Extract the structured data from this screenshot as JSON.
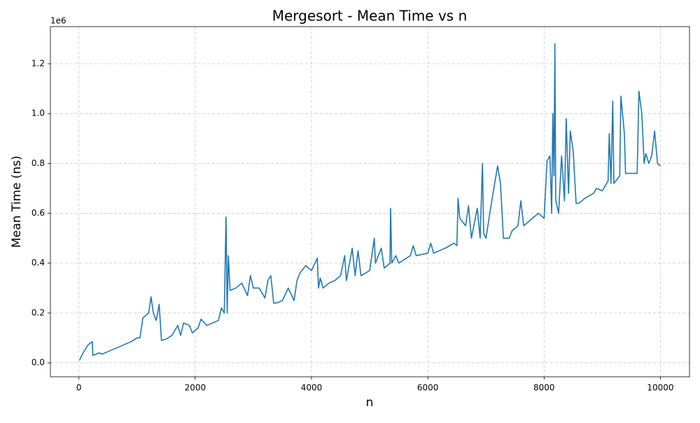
{
  "chart_data": {
    "type": "line",
    "title": "Mergesort - Mean Time vs n",
    "x_label": "n",
    "y_label": "Mean Time (ns)",
    "y_offset_label": "1e6",
    "x": [
      10,
      50,
      100,
      150,
      200,
      230,
      240,
      300,
      350,
      400,
      500,
      700,
      900,
      1000,
      1050,
      1100,
      1200,
      1240,
      1280,
      1330,
      1380,
      1420,
      1500,
      1600,
      1700,
      1750,
      1800,
      1900,
      1950,
      2050,
      2100,
      2200,
      2400,
      2450,
      2500,
      2530,
      2550,
      2570,
      2600,
      2700,
      2800,
      2900,
      2950,
      3000,
      3100,
      3200,
      3250,
      3300,
      3350,
      3400,
      3500,
      3600,
      3700,
      3750,
      3800,
      3900,
      4000,
      4100,
      4120,
      4150,
      4200,
      4300,
      4400,
      4500,
      4570,
      4600,
      4700,
      4750,
      4800,
      4850,
      5000,
      5080,
      5100,
      5200,
      5250,
      5350,
      5360,
      5380,
      5450,
      5500,
      5700,
      5750,
      5800,
      6000,
      6050,
      6100,
      6300,
      6450,
      6500,
      6520,
      6550,
      6650,
      6700,
      6750,
      6850,
      6900,
      6940,
      6960,
      7000,
      7100,
      7200,
      7250,
      7300,
      7400,
      7450,
      7550,
      7600,
      7650,
      7750,
      7900,
      8000,
      8050,
      8100,
      8130,
      8150,
      8170,
      8185,
      8200,
      8250,
      8300,
      8350,
      8380,
      8420,
      8450,
      8500,
      8550,
      8600,
      8700,
      8850,
      8900,
      9000,
      9100,
      9120,
      9150,
      9180,
      9200,
      9300,
      9320,
      9380,
      9400,
      9500,
      9600,
      9630,
      9680,
      9720,
      9750,
      9800,
      9850,
      9900,
      9950,
      10000
    ],
    "series": [
      {
        "name": "Mean Time",
        "color": "#1f77b4",
        "values": [
          0.01,
          0.03,
          0.05,
          0.07,
          0.08,
          0.085,
          0.03,
          0.035,
          0.04,
          0.035,
          0.045,
          0.065,
          0.085,
          0.1,
          0.1,
          0.18,
          0.2,
          0.265,
          0.2,
          0.17,
          0.235,
          0.09,
          0.095,
          0.11,
          0.15,
          0.11,
          0.16,
          0.15,
          0.12,
          0.14,
          0.175,
          0.15,
          0.17,
          0.22,
          0.2,
          0.585,
          0.2,
          0.43,
          0.29,
          0.3,
          0.32,
          0.27,
          0.35,
          0.3,
          0.3,
          0.26,
          0.33,
          0.35,
          0.24,
          0.24,
          0.25,
          0.3,
          0.25,
          0.33,
          0.36,
          0.39,
          0.37,
          0.42,
          0.3,
          0.34,
          0.3,
          0.32,
          0.33,
          0.35,
          0.43,
          0.33,
          0.46,
          0.35,
          0.45,
          0.35,
          0.37,
          0.5,
          0.4,
          0.46,
          0.38,
          0.4,
          0.62,
          0.4,
          0.43,
          0.4,
          0.43,
          0.47,
          0.43,
          0.44,
          0.48,
          0.44,
          0.46,
          0.48,
          0.47,
          0.66,
          0.58,
          0.55,
          0.63,
          0.5,
          0.62,
          0.5,
          0.8,
          0.52,
          0.5,
          0.65,
          0.79,
          0.72,
          0.5,
          0.5,
          0.53,
          0.55,
          0.65,
          0.55,
          0.57,
          0.6,
          0.58,
          0.81,
          0.83,
          0.6,
          1.0,
          0.75,
          1.28,
          0.65,
          0.6,
          0.83,
          0.65,
          0.98,
          0.68,
          0.93,
          0.85,
          0.64,
          0.64,
          0.66,
          0.68,
          0.7,
          0.69,
          0.73,
          0.92,
          0.72,
          1.05,
          0.72,
          0.75,
          1.07,
          0.92,
          0.76,
          0.76,
          0.76,
          1.09,
          1.0,
          0.8,
          0.84,
          0.8,
          0.83,
          0.93,
          0.8,
          0.79
        ]
      }
    ],
    "xlim": [
      -490,
      10500
    ],
    "ylim": [
      -0.056,
      1.349
    ],
    "xticks": [
      0,
      2000,
      4000,
      6000,
      8000,
      10000
    ],
    "yticks": [
      {
        "value": 0,
        "label": "0.0"
      },
      0.2,
      0.4,
      0.6,
      0.8,
      {
        "value": 1,
        "label": "1.0"
      },
      1.2
    ],
    "grid": true
  }
}
